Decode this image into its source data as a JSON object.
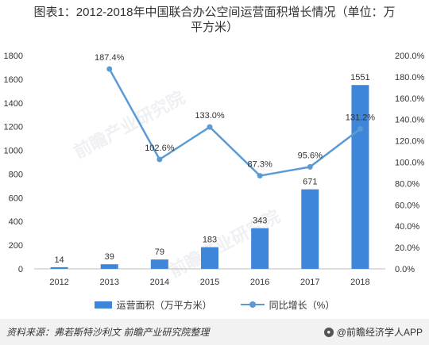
{
  "title": {
    "line1": "图表1：2012-2018年中国联合办公空间运营面积增长情况（单位：万",
    "line2": "平方米）"
  },
  "watermarks": [
    "前瞻产业研究院",
    "前瞻产业研究院"
  ],
  "chart_data": {
    "type": "bar",
    "categories": [
      "2012",
      "2013",
      "2014",
      "2015",
      "2016",
      "2017",
      "2018"
    ],
    "series": [
      {
        "name": "运营面积（万平方米）",
        "type": "bar",
        "axis": "left",
        "values": [
          14,
          39,
          79,
          183,
          343,
          671,
          1551
        ],
        "labels": [
          "14",
          "39",
          "79",
          "183",
          "343",
          "671",
          "1551"
        ],
        "color": "#3f86d9"
      },
      {
        "name": "同比增长（%）",
        "type": "line",
        "axis": "right",
        "values": [
          null,
          187.4,
          102.6,
          133.0,
          87.3,
          95.6,
          131.2
        ],
        "labels": [
          "",
          "187.4%",
          "102.6%",
          "133.0%",
          "87.3%",
          "95.6%",
          "131.2%"
        ],
        "color": "#5b9bd5"
      }
    ],
    "y_left": {
      "min": 0,
      "max": 1800,
      "ticks": [
        "0",
        "200",
        "400",
        "600",
        "800",
        "1000",
        "1200",
        "1400",
        "1600",
        "1800"
      ]
    },
    "y_right": {
      "min": 0,
      "max": 200,
      "ticks": [
        "0.0%",
        "20.0%",
        "40.0%",
        "60.0%",
        "80.0%",
        "100.0%",
        "120.0%",
        "140.0%",
        "160.0%",
        "180.0%",
        "200.0%"
      ]
    },
    "grid": false,
    "legend_position": "bottom"
  },
  "legend": {
    "bar_label": "运营面积（万平方米）",
    "line_label": "同比增长（%）"
  },
  "footer": {
    "source": "资料来源：弗若斯特沙利文 前瞻产业研究院整理",
    "brand": "@前瞻经济学人APP"
  }
}
